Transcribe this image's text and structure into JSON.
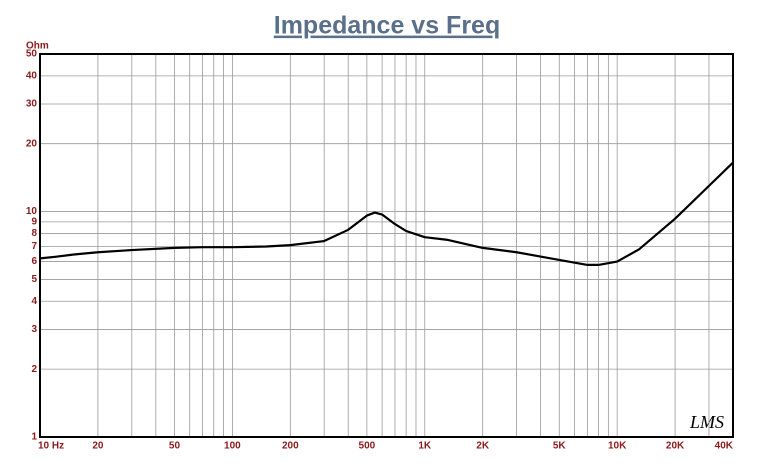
{
  "chart_data": {
    "type": "line",
    "title": "Impedance vs Freq",
    "ylabel": "Ohm",
    "annotation": "LMS",
    "xscale": "log",
    "yscale": "log",
    "grid": true,
    "color": "#000000",
    "x": [
      10,
      12,
      15,
      20,
      30,
      50,
      70,
      100,
      150,
      200,
      300,
      400,
      500,
      550,
      600,
      700,
      800,
      1000,
      1300,
      2000,
      3000,
      5000,
      7000,
      8000,
      10000,
      13000,
      20000,
      30000,
      40000
    ],
    "values": [
      6.2,
      6.3,
      6.45,
      6.6,
      6.75,
      6.9,
      6.95,
      6.95,
      7.0,
      7.1,
      7.4,
      8.3,
      9.6,
      9.9,
      9.7,
      8.8,
      8.2,
      7.7,
      7.5,
      6.9,
      6.6,
      6.1,
      5.8,
      5.8,
      6.0,
      6.8,
      9.3,
      13.0,
      16.5
    ],
    "xlim": [
      10,
      40000
    ],
    "ylim": [
      1,
      50
    ],
    "xticks": [
      {
        "value": 10,
        "label": "10 Hz"
      },
      20,
      50,
      100,
      200,
      500,
      {
        "value": 1000,
        "label": "1K"
      },
      {
        "value": 2000,
        "label": "2K"
      },
      {
        "value": 5000,
        "label": "5K"
      },
      {
        "value": 10000,
        "label": "10K"
      },
      {
        "value": 20000,
        "label": "20K"
      },
      {
        "value": 40000,
        "label": "40K"
      }
    ],
    "xgrid": [
      10,
      20,
      30,
      40,
      50,
      60,
      70,
      80,
      90,
      100,
      200,
      300,
      400,
      500,
      600,
      700,
      800,
      900,
      1000,
      2000,
      3000,
      4000,
      5000,
      6000,
      7000,
      8000,
      9000,
      10000,
      20000,
      30000,
      40000
    ],
    "yticks": [
      1,
      2,
      3,
      4,
      5,
      6,
      7,
      8,
      9,
      10,
      20,
      30,
      40,
      50
    ]
  }
}
